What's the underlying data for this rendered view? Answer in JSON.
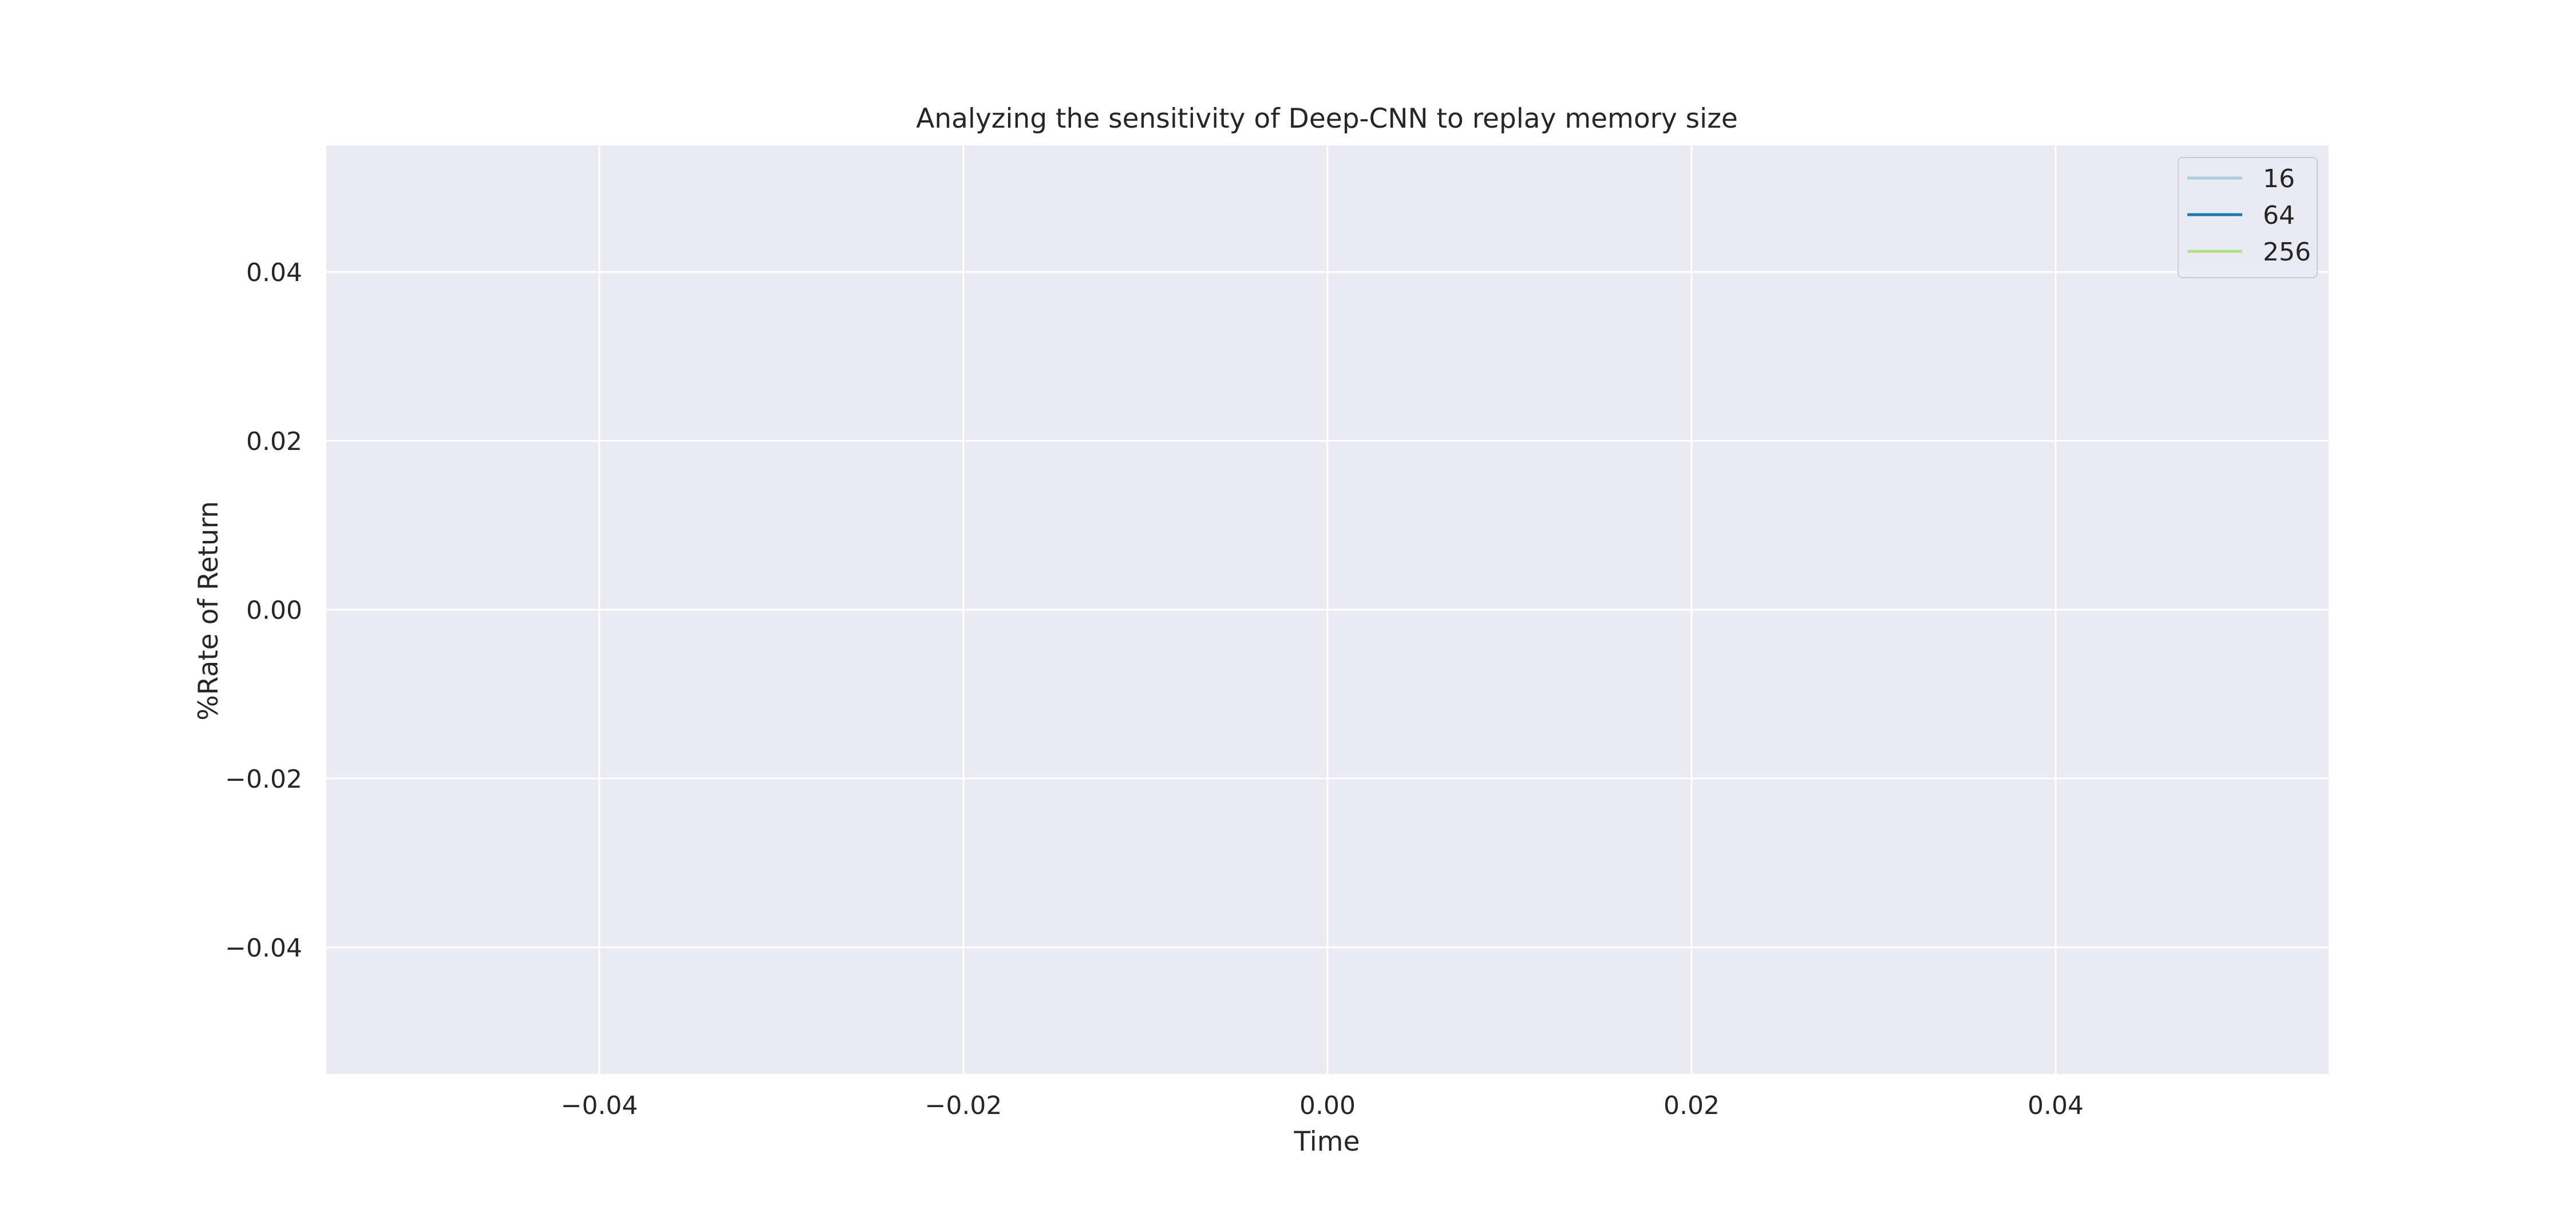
{
  "chart_data": {
    "type": "line",
    "title": "Analyzing the sensitivity of Deep-CNN to replay memory size",
    "xlabel": "Time",
    "ylabel": "%Rate of Return",
    "xlim": [
      -0.055,
      0.055
    ],
    "ylim": [
      -0.055,
      0.055
    ],
    "x_ticks": [
      -0.04,
      -0.02,
      0.0,
      0.02,
      0.04
    ],
    "x_tick_labels": [
      "−0.04",
      "−0.02",
      "0.00",
      "0.02",
      "0.04"
    ],
    "y_ticks": [
      0.04,
      0.02,
      0.0,
      -0.02,
      -0.04
    ],
    "y_tick_labels": [
      "0.04",
      "0.02",
      "0.00",
      "−0.02",
      "−0.04"
    ],
    "grid": true,
    "legend_position": "top-right",
    "series": [
      {
        "name": "16",
        "color": "#a6cee3",
        "x": [],
        "y": []
      },
      {
        "name": "64",
        "color": "#1f78b4",
        "x": [],
        "y": []
      },
      {
        "name": "256",
        "color": "#b2df8a",
        "x": [],
        "y": []
      }
    ],
    "style": {
      "plot_background": "#eaeaf2",
      "grid_color": "#ffffff",
      "text_color": "#262626"
    }
  }
}
